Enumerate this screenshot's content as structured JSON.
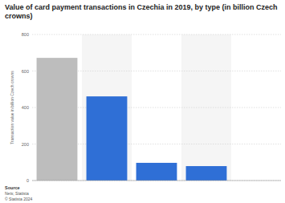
{
  "chart_data": {
    "type": "bar",
    "title": "Value of card payment transactions in Czechia in 2019, by type (in billion Czech crowns)",
    "y_label": "Transaction value in billion Czech crowns",
    "categories": [
      null,
      null,
      null,
      null,
      null
    ],
    "values": [
      672,
      461,
      97,
      79,
      null
    ],
    "colors": [
      "#bdbdbd",
      "#2f6fd6",
      "#2f6fd6",
      "#2f6fd6",
      "#2f6fd6"
    ],
    "ylim": [
      0,
      800
    ],
    "yticks": [
      0,
      200,
      400,
      600,
      800
    ],
    "grid": true,
    "tick_labels": "y",
    "source": "Source",
    "source_detail": "Nets; Statista",
    "copyright": "© Statista 2024"
  }
}
